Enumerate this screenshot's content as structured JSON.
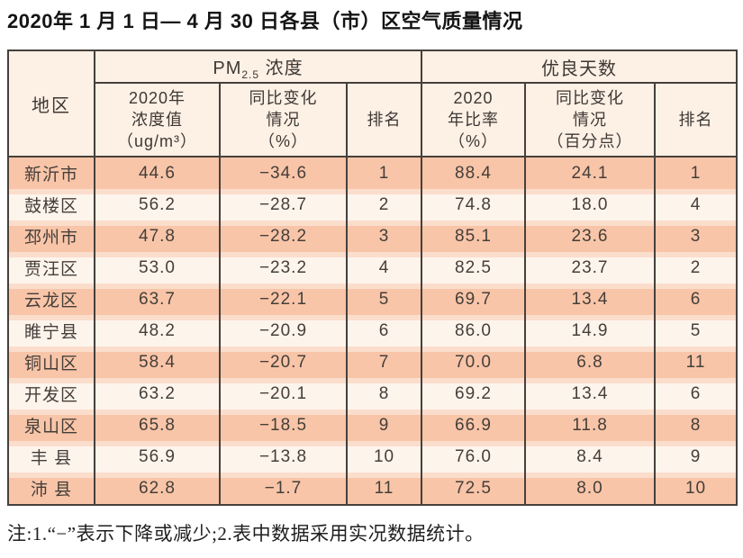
{
  "title": "2020年 1 月 1 日— 4 月 30 日各县（市）区空气质量情况",
  "table": {
    "region_header": "地区",
    "pm_group": {
      "base": "PM",
      "sub": "2.5",
      "rest": " 浓度"
    },
    "good_days_group": "优良天数",
    "sub_headers": {
      "pm_value": "2020年\n浓度值\n（ug/m³）",
      "pm_change": "同比变化\n情况\n（%）",
      "pm_rank": "排名",
      "good_ratio": "2020\n年比率\n（%）",
      "good_change": "同比变化\n情况\n（百分点）",
      "good_rank": "排名"
    },
    "rows": [
      {
        "region": "新沂市",
        "pm_value": "44.6",
        "pm_change": "−34.6",
        "pm_rank": "1",
        "good_ratio": "88.4",
        "good_change": "24.1",
        "good_rank": "1"
      },
      {
        "region": "鼓楼区",
        "pm_value": "56.2",
        "pm_change": "−28.7",
        "pm_rank": "2",
        "good_ratio": "74.8",
        "good_change": "18.0",
        "good_rank": "4"
      },
      {
        "region": "邳州市",
        "pm_value": "47.8",
        "pm_change": "−28.2",
        "pm_rank": "3",
        "good_ratio": "85.1",
        "good_change": "23.6",
        "good_rank": "3"
      },
      {
        "region": "贾汪区",
        "pm_value": "53.0",
        "pm_change": "−23.2",
        "pm_rank": "4",
        "good_ratio": "82.5",
        "good_change": "23.7",
        "good_rank": "2"
      },
      {
        "region": "云龙区",
        "pm_value": "63.7",
        "pm_change": "−22.1",
        "pm_rank": "5",
        "good_ratio": "69.7",
        "good_change": "13.4",
        "good_rank": "6"
      },
      {
        "region": "睢宁县",
        "pm_value": "48.2",
        "pm_change": "−20.9",
        "pm_rank": "6",
        "good_ratio": "86.0",
        "good_change": "14.9",
        "good_rank": "5"
      },
      {
        "region": "铜山区",
        "pm_value": "58.4",
        "pm_change": "−20.7",
        "pm_rank": "7",
        "good_ratio": "70.0",
        "good_change": "6.8",
        "good_rank": "11"
      },
      {
        "region": "开发区",
        "pm_value": "63.2",
        "pm_change": "−20.1",
        "pm_rank": "8",
        "good_ratio": "69.2",
        "good_change": "13.4",
        "good_rank": "6"
      },
      {
        "region": "泉山区",
        "pm_value": "65.8",
        "pm_change": "−18.5",
        "pm_rank": "9",
        "good_ratio": "66.9",
        "good_change": "11.8",
        "good_rank": "8"
      },
      {
        "region": "丰 县",
        "pm_value": "56.9",
        "pm_change": "−13.8",
        "pm_rank": "10",
        "good_ratio": "76.0",
        "good_change": "8.4",
        "good_rank": "9"
      },
      {
        "region": "沛 县",
        "pm_value": "62.8",
        "pm_change": "−1.7",
        "pm_rank": "11",
        "good_ratio": "72.5",
        "good_change": "8.0",
        "good_rank": "10"
      }
    ]
  },
  "footnote": "注:1.“−”表示下降或减少;2.表中数据采用实况数据统计。"
}
